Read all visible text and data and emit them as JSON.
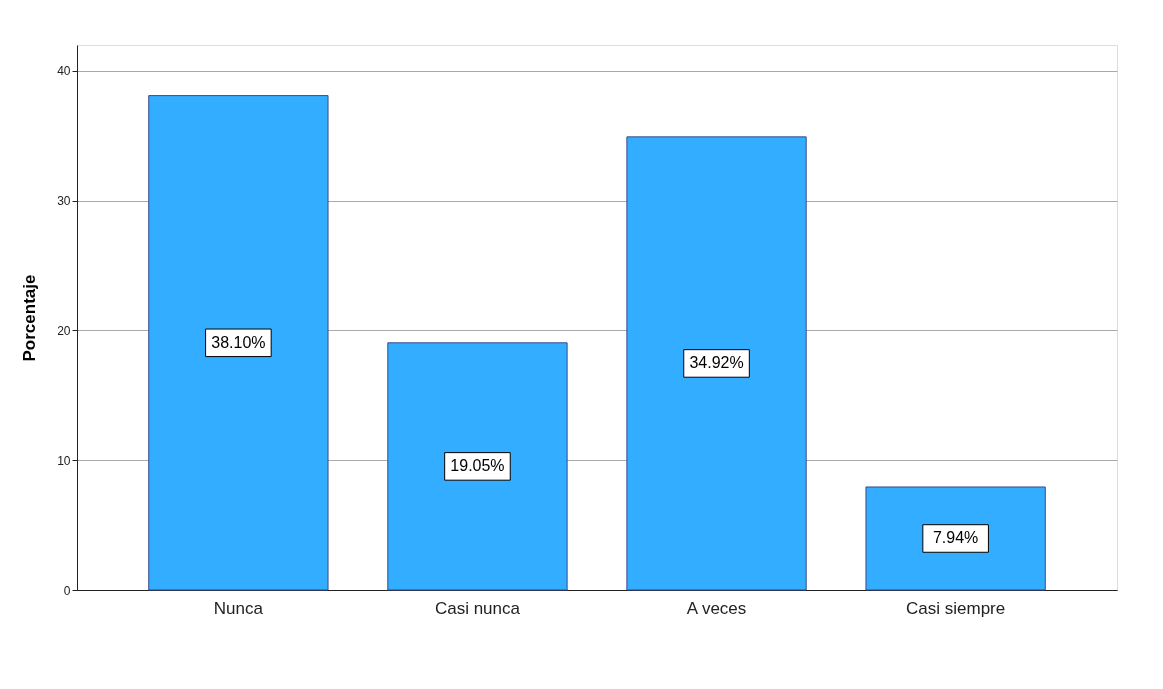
{
  "chart_data": {
    "type": "bar",
    "ylabel": "Porcentaje",
    "categories": [
      "Nunca",
      "Casi nunca",
      "A veces",
      "Casi siempre"
    ],
    "values": [
      38.1,
      19.05,
      34.92,
      7.94
    ],
    "value_labels": [
      "38.10%",
      "19.05%",
      "34.92%",
      "7.94%"
    ],
    "color": "#33adff",
    "ylim": [
      0,
      42
    ],
    "yticks": [
      0,
      10,
      20,
      30,
      40
    ],
    "grid": "y"
  }
}
